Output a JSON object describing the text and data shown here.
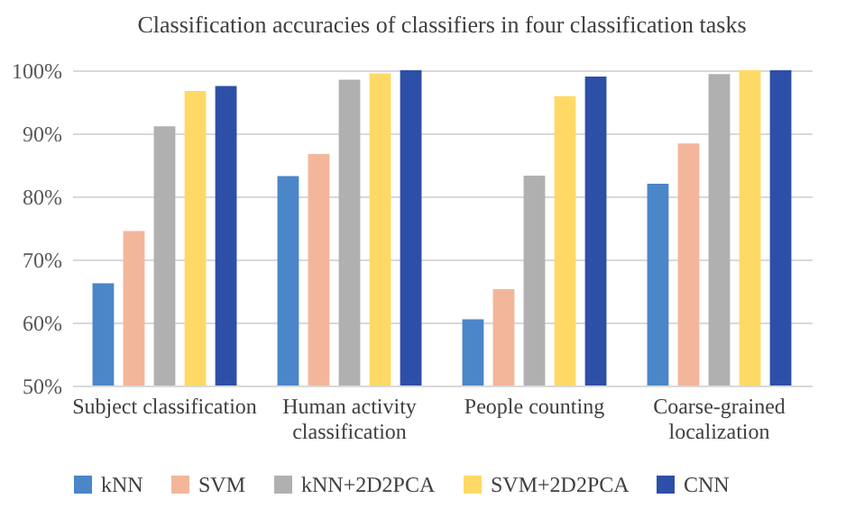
{
  "chart_data": {
    "type": "bar",
    "title": "Classification accuracies of classifiers in four classification tasks",
    "categories": [
      "Subject classification",
      "Human activity classification",
      "People counting",
      "Coarse-grained localization"
    ],
    "series": [
      {
        "name": "kNN",
        "color": "#4a86c8",
        "values": [
          66.2,
          83.2,
          60.5,
          82.0
        ]
      },
      {
        "name": "SVM",
        "color": "#f4b69a",
        "values": [
          74.5,
          86.7,
          65.3,
          88.4
        ]
      },
      {
        "name": "kNN+2D2PCA",
        "color": "#b0b0b0",
        "values": [
          91.1,
          98.5,
          83.3,
          99.4
        ]
      },
      {
        "name": "SVM+2D2PCA",
        "color": "#ffd966",
        "values": [
          96.7,
          99.5,
          95.9,
          100
        ]
      },
      {
        "name": "CNN",
        "color": "#2e4fa8",
        "values": [
          97.5,
          100,
          99.0,
          100
        ]
      }
    ],
    "ylim": [
      50,
      100
    ],
    "yticks": [
      {
        "value": 50,
        "label": "50%"
      },
      {
        "value": 60,
        "label": "60%"
      },
      {
        "value": 70,
        "label": "70%"
      },
      {
        "value": 80,
        "label": "80%"
      },
      {
        "value": 90,
        "label": "90%"
      },
      {
        "value": 100,
        "label": "100%"
      }
    ],
    "grid": "y",
    "legend": "bottom"
  }
}
